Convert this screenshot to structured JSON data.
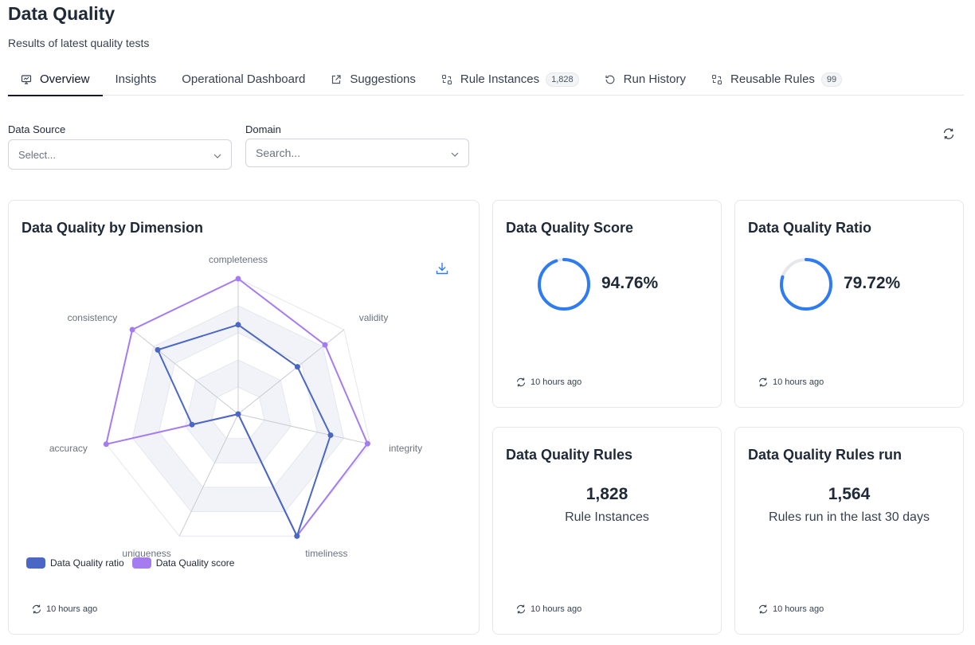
{
  "header": {
    "title": "Data Quality",
    "subtitle": "Results of latest quality tests"
  },
  "tabs": [
    {
      "label": "Overview",
      "icon": "monitor-icon",
      "active": true
    },
    {
      "label": "Insights"
    },
    {
      "label": "Operational Dashboard"
    },
    {
      "label": "Suggestions",
      "icon": "external-link-icon"
    },
    {
      "label": "Rule Instances",
      "icon": "rules-icon",
      "badge": "1,828"
    },
    {
      "label": "Run History",
      "icon": "history-icon"
    },
    {
      "label": "Reusable Rules",
      "icon": "rules-icon",
      "badge": "99"
    }
  ],
  "filters": {
    "data_source": {
      "label": "Data Source",
      "placeholder": "Select..."
    },
    "domain": {
      "label": "Domain",
      "placeholder": "Search..."
    }
  },
  "cards": {
    "dimension": {
      "title": "Data Quality by Dimension",
      "updated": "10 hours ago"
    },
    "score": {
      "title": "Data Quality Score",
      "value": "94.76%",
      "fraction": 0.9476,
      "updated": "10 hours ago"
    },
    "ratio": {
      "title": "Data Quality Ratio",
      "value": "79.72%",
      "fraction": 0.7972,
      "updated": "10 hours ago"
    },
    "rules": {
      "title": "Data Quality Rules",
      "value": "1,828",
      "caption": "Rule Instances",
      "updated": "10 hours ago"
    },
    "rules_run": {
      "title": "Data Quality Rules run",
      "value": "1,564",
      "caption": "Rules run in the last 30 days",
      "updated": "10 hours ago"
    }
  },
  "chart_data": {
    "type": "radar",
    "title": "Data Quality by Dimension",
    "axes": [
      "completeness",
      "validity",
      "integrity",
      "timeliness",
      "uniqueness",
      "accuracy",
      "consistency"
    ],
    "max": 100,
    "series": [
      {
        "name": "Data Quality ratio",
        "color": "#4a67c4",
        "values": [
          66,
          56,
          70,
          100,
          0,
          35,
          76
        ]
      },
      {
        "name": "Data Quality score",
        "color": "#a57cf0",
        "values": [
          100,
          82,
          98,
          100,
          0,
          100,
          100
        ]
      }
    ]
  },
  "colors": {
    "accent_blue": "#2f7bf2",
    "ratio_series": "#4a67c4",
    "score_series": "#a57cf0"
  }
}
